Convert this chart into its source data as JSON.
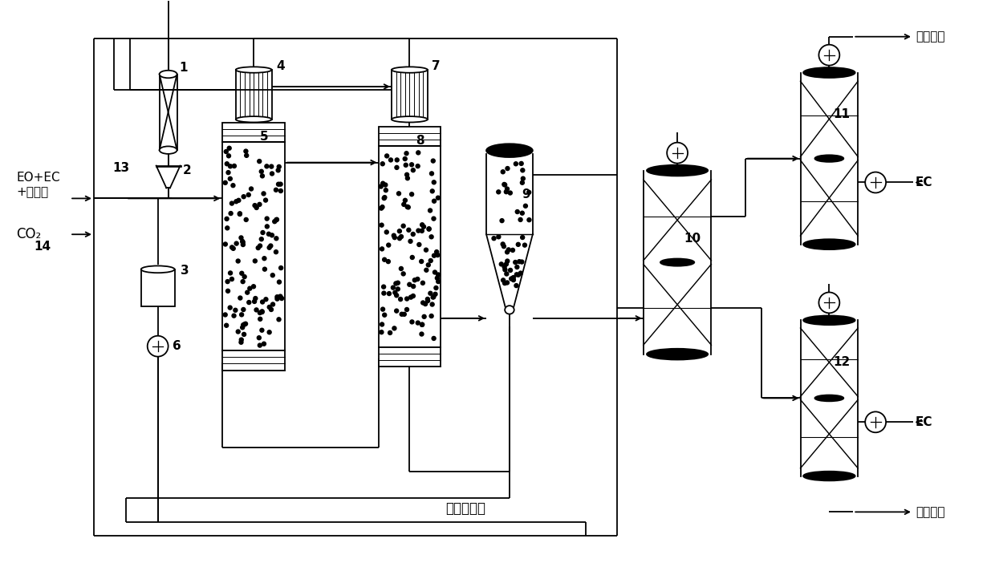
{
  "bg_color": "#ffffff",
  "lc": "#000000",
  "lw": 1.3,
  "font_size": 11,
  "labels": {
    "1": "1",
    "2": "2",
    "3": "3",
    "4": "4",
    "5": "5",
    "6": "6",
    "7": "7",
    "8": "8",
    "9": "9",
    "10": "10",
    "11": "11",
    "12": "12",
    "13": "13",
    "14": "14",
    "EO_EC": "EO+EC\n+催化剂",
    "CO2": "CO₂",
    "waste_upper": "废液处理",
    "EC_upper": "EC",
    "waste_lower": "废液处理",
    "EC_lower": "EC",
    "catalyst_recovery": "催化剂回收"
  }
}
